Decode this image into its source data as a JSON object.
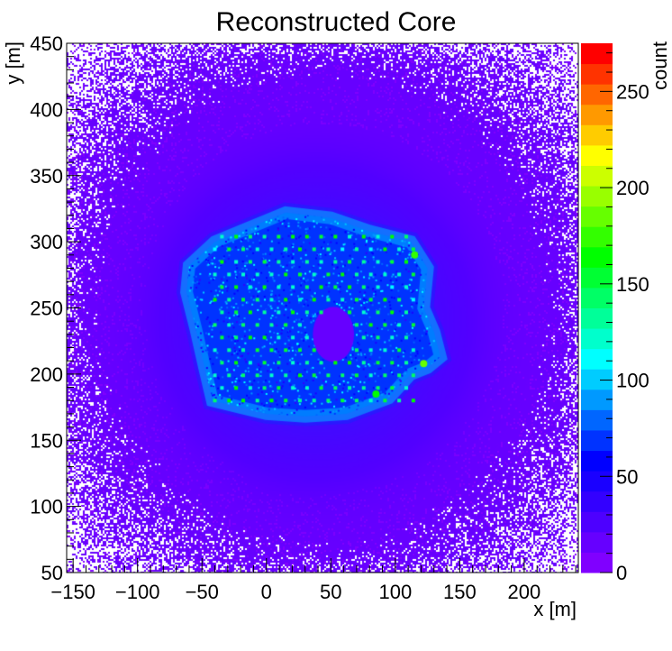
{
  "chart_data": {
    "type": "heatmap",
    "title": "Reconstructed Core",
    "xlabel": "x [m]",
    "ylabel": "y [m]",
    "zlabel": "count",
    "xlim": [
      -155,
      242
    ],
    "ylim": [
      50,
      450
    ],
    "zlim": [
      0,
      275
    ],
    "x_ticks": [
      -150,
      -100,
      -50,
      0,
      50,
      100,
      150,
      200
    ],
    "x_tick_labels": [
      "−150",
      "−100",
      "−50",
      "0",
      "50",
      "100",
      "150",
      "200"
    ],
    "y_ticks": [
      50,
      100,
      150,
      200,
      250,
      300,
      350,
      400,
      450
    ],
    "y_tick_labels": [
      "50",
      "100",
      "150",
      "200",
      "250",
      "300",
      "350",
      "400",
      "450"
    ],
    "z_ticks": [
      0,
      50,
      100,
      150,
      200,
      250
    ],
    "z_tick_labels": [
      "0",
      "50",
      "100",
      "150",
      "200",
      "250"
    ],
    "background_level": 20,
    "empty_bins_color": "#ffffff",
    "palette": [
      "#8000ff",
      "#6600ff",
      "#4d00ff",
      "#3300ff",
      "#1a00ff",
      "#0000ff",
      "#0033ff",
      "#0066ff",
      "#0099ff",
      "#00ccff",
      "#00ffff",
      "#00ffcc",
      "#00ff99",
      "#00ff66",
      "#00ff33",
      "#00ff00",
      "#33ff00",
      "#66ff00",
      "#99ff00",
      "#ccff00",
      "#ffff00",
      "#ffcc00",
      "#ff9900",
      "#ff6600",
      "#ff3300",
      "#ff0000"
    ],
    "footprint_polygon": [
      [
        -60,
        282
      ],
      [
        -40,
        300
      ],
      [
        -15,
        310
      ],
      [
        15,
        322
      ],
      [
        50,
        318
      ],
      [
        80,
        308
      ],
      [
        112,
        300
      ],
      [
        125,
        280
      ],
      [
        122,
        250
      ],
      [
        130,
        232
      ],
      [
        135,
        213
      ],
      [
        125,
        205
      ],
      [
        112,
        200
      ],
      [
        95,
        182
      ],
      [
        62,
        170
      ],
      [
        30,
        168
      ],
      [
        0,
        170
      ],
      [
        -25,
        176
      ],
      [
        -42,
        180
      ],
      [
        -48,
        205
      ],
      [
        -55,
        235
      ],
      [
        -62,
        262
      ]
    ],
    "footprint_level": 92,
    "footprint_edge_level": 110,
    "array_hole": {
      "x": 52,
      "y": 230,
      "r": 16
    },
    "array_hot_spots": [
      [
        115,
        290,
        170
      ],
      [
        122,
        208,
        190
      ],
      [
        85,
        185,
        165
      ]
    ],
    "detector_grid": {
      "x_start": -40,
      "x_end": 118,
      "y_start": 180,
      "y_end": 312,
      "spacing": 11,
      "level": 140
    }
  }
}
